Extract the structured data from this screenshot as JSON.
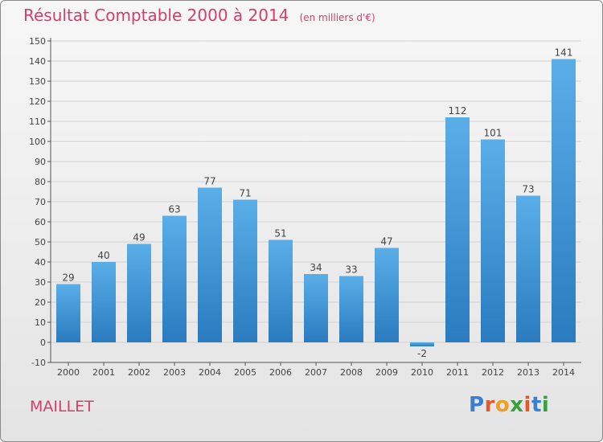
{
  "header": {
    "title": "Résultat Comptable 2000 à 2014",
    "subtitle": "(en milliers d'€)"
  },
  "footer": {
    "commune": "MAILLET",
    "logo_text": "Proxiti"
  },
  "colors": {
    "title": "#d0406a",
    "bar_light": "#5aaee8",
    "bar_dark": "#2a7bbf",
    "grid": "#d2d2d2",
    "axis_text": "#444444",
    "logo_letters": [
      "#3a7fd0",
      "#e05a2a",
      "#f0a020",
      "#3aa040",
      "#e05a2a",
      "#3a7fd0",
      "#3aa040"
    ]
  },
  "chart_data": {
    "type": "bar",
    "title": "Résultat Comptable 2000 à 2014",
    "subtitle": "(en milliers d'€)",
    "categories": [
      "2000",
      "2001",
      "2002",
      "2003",
      "2004",
      "2005",
      "2006",
      "2007",
      "2008",
      "2009",
      "2010",
      "2011",
      "2012",
      "2013",
      "2014"
    ],
    "values": [
      29,
      40,
      49,
      63,
      77,
      71,
      51,
      34,
      33,
      47,
      -2,
      112,
      101,
      73,
      141
    ],
    "ylim": [
      -10,
      150
    ],
    "yticks": [
      -10,
      0,
      10,
      20,
      30,
      40,
      50,
      60,
      70,
      80,
      90,
      100,
      110,
      120,
      130,
      140,
      150
    ],
    "grid": true
  }
}
